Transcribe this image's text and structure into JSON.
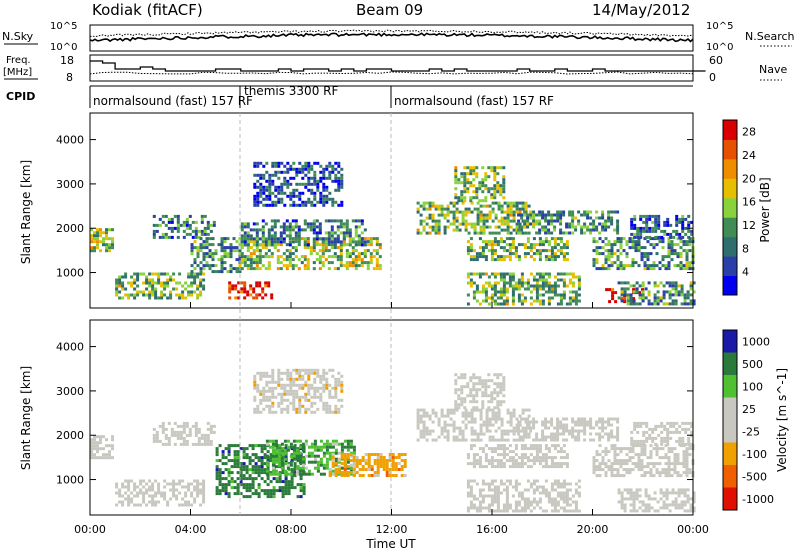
{
  "header": {
    "title": "Kodiak (fitACF)",
    "beam": "Beam 09",
    "date": "14/May/2012"
  },
  "top_panels": {
    "nsky_label": "N.Sky",
    "nsearch_label": "N.Search",
    "nsky_ticks": [
      "10^5",
      "10^0"
    ],
    "nsearch_ticks": [
      "10^5",
      "10^0"
    ],
    "freq_label": "Freq.",
    "freq_unit": "[MHz]",
    "freq_ticks": [
      "18",
      "8"
    ],
    "nave_label": "Nave",
    "nave_ticks": [
      "60",
      "0"
    ],
    "cpid_label": "CPID",
    "cpid_segments": [
      {
        "start_hour": 0,
        "end_hour": 6,
        "label": "normalsound (fast) 157 RF"
      },
      {
        "start_hour": 6,
        "end_hour": 12,
        "label": "themis 3300 RF"
      },
      {
        "start_hour": 12,
        "end_hour": 24,
        "label": "normalsound (fast) 157 RF"
      }
    ]
  },
  "colors": {
    "power": [
      "#0000ee",
      "#2a3fa8",
      "#2f6e6e",
      "#3f8c55",
      "#8ad23c",
      "#e6c000",
      "#f08c00",
      "#e65000",
      "#d80000"
    ],
    "velocity": [
      "#1a1aa8",
      "#2a7a3a",
      "#4fc032",
      "#c8c8c0",
      "#c8c8c0",
      "#f0a000",
      "#f06000",
      "#e01000"
    ],
    "ground_scatter": "#c8c8c0"
  },
  "chart_data": [
    {
      "type": "heatmap",
      "name": "power",
      "ylabel": "Slant Range [km]",
      "ylim": [
        200,
        4600
      ],
      "yticks": [
        1000,
        2000,
        3000,
        4000
      ],
      "xlim": [
        0,
        24
      ],
      "colorbar_label": "Power [dB]",
      "colorbar_ticks": [
        4,
        8,
        12,
        16,
        20,
        24,
        28
      ],
      "colorbar_range": [
        0,
        30
      ],
      "scatter_regions": [
        {
          "start_hour": 0.0,
          "end_hour": 0.9,
          "min_km": 1500,
          "max_km": 2000,
          "level": 0.5
        },
        {
          "start_hour": 1.0,
          "end_hour": 4.5,
          "min_km": 450,
          "max_km": 1000,
          "level": 0.45
        },
        {
          "start_hour": 2.5,
          "end_hour": 5.0,
          "min_km": 1800,
          "max_km": 2300,
          "level": 0.3
        },
        {
          "start_hour": 4.0,
          "end_hour": 6.0,
          "min_km": 1000,
          "max_km": 1800,
          "level": 0.35
        },
        {
          "start_hour": 5.5,
          "end_hour": 7.2,
          "min_km": 400,
          "max_km": 800,
          "level": 0.95
        },
        {
          "start_hour": 6.0,
          "end_hour": 11.5,
          "min_km": 1100,
          "max_km": 1800,
          "level": 0.5
        },
        {
          "start_hour": 6.0,
          "end_hour": 11.0,
          "min_km": 1600,
          "max_km": 2200,
          "level": 0.3
        },
        {
          "start_hour": 6.5,
          "end_hour": 10.0,
          "min_km": 2500,
          "max_km": 3500,
          "level": 0.2
        },
        {
          "start_hour": 13.0,
          "end_hour": 17.5,
          "min_km": 1900,
          "max_km": 2600,
          "level": 0.45
        },
        {
          "start_hour": 14.5,
          "end_hour": 16.5,
          "min_km": 2600,
          "max_km": 3400,
          "level": 0.45
        },
        {
          "start_hour": 15.0,
          "end_hour": 19.0,
          "min_km": 1300,
          "max_km": 1800,
          "level": 0.45
        },
        {
          "start_hour": 15.0,
          "end_hour": 19.5,
          "min_km": 300,
          "max_km": 1000,
          "level": 0.45
        },
        {
          "start_hour": 17.0,
          "end_hour": 21.0,
          "min_km": 1900,
          "max_km": 2400,
          "level": 0.35
        },
        {
          "start_hour": 20.5,
          "end_hour": 22.0,
          "min_km": 350,
          "max_km": 650,
          "level": 0.95
        },
        {
          "start_hour": 20.0,
          "end_hour": 24.0,
          "min_km": 1100,
          "max_km": 1800,
          "level": 0.35
        },
        {
          "start_hour": 21.0,
          "end_hour": 24.0,
          "min_km": 300,
          "max_km": 800,
          "level": 0.35
        },
        {
          "start_hour": 21.5,
          "end_hour": 24.0,
          "min_km": 1800,
          "max_km": 2300,
          "level": 0.25
        }
      ]
    },
    {
      "type": "heatmap",
      "name": "velocity",
      "ylabel": "Slant Range [km]",
      "ylim": [
        200,
        4600
      ],
      "yticks": [
        1000,
        2000,
        3000,
        4000
      ],
      "xlim": [
        0,
        24
      ],
      "xlabel": "Time UT",
      "xticks": [
        "00:00",
        "04:00",
        "08:00",
        "12:00",
        "16:00",
        "20:00",
        "00:00"
      ],
      "colorbar_label": "Velocity [m s^-1]",
      "colorbar_ticks": [
        1000,
        500,
        100,
        25,
        -25,
        -100,
        -500,
        -1000
      ],
      "ground_scatter_regions": [
        {
          "start_hour": 0.0,
          "end_hour": 0.9,
          "min_km": 1500,
          "max_km": 2000
        },
        {
          "start_hour": 1.0,
          "end_hour": 4.5,
          "min_km": 450,
          "max_km": 1000
        },
        {
          "start_hour": 2.5,
          "end_hour": 5.0,
          "min_km": 1800,
          "max_km": 2300
        },
        {
          "start_hour": 13.0,
          "end_hour": 17.5,
          "min_km": 1900,
          "max_km": 2600
        },
        {
          "start_hour": 14.5,
          "end_hour": 16.5,
          "min_km": 2600,
          "max_km": 3400
        },
        {
          "start_hour": 15.0,
          "end_hour": 19.0,
          "min_km": 1300,
          "max_km": 1800
        },
        {
          "start_hour": 15.0,
          "end_hour": 19.5,
          "min_km": 300,
          "max_km": 1000
        },
        {
          "start_hour": 17.0,
          "end_hour": 21.0,
          "min_km": 1900,
          "max_km": 2400
        },
        {
          "start_hour": 20.0,
          "end_hour": 24.0,
          "min_km": 1100,
          "max_km": 1800
        },
        {
          "start_hour": 21.0,
          "end_hour": 24.0,
          "min_km": 300,
          "max_km": 800
        },
        {
          "start_hour": 21.5,
          "end_hour": 24.0,
          "min_km": 1800,
          "max_km": 2300
        }
      ],
      "flow_regions": [
        {
          "start_hour": 5.0,
          "end_hour": 8.5,
          "min_km": 600,
          "max_km": 1800,
          "velocity": 300
        },
        {
          "start_hour": 7.0,
          "end_hour": 10.5,
          "min_km": 1100,
          "max_km": 1900,
          "velocity": 80
        },
        {
          "start_hour": 9.5,
          "end_hour": 12.5,
          "min_km": 1100,
          "max_km": 1600,
          "velocity": -300
        },
        {
          "start_hour": 6.5,
          "end_hour": 10.0,
          "min_km": 2500,
          "max_km": 3500,
          "velocity": -60
        }
      ]
    }
  ]
}
